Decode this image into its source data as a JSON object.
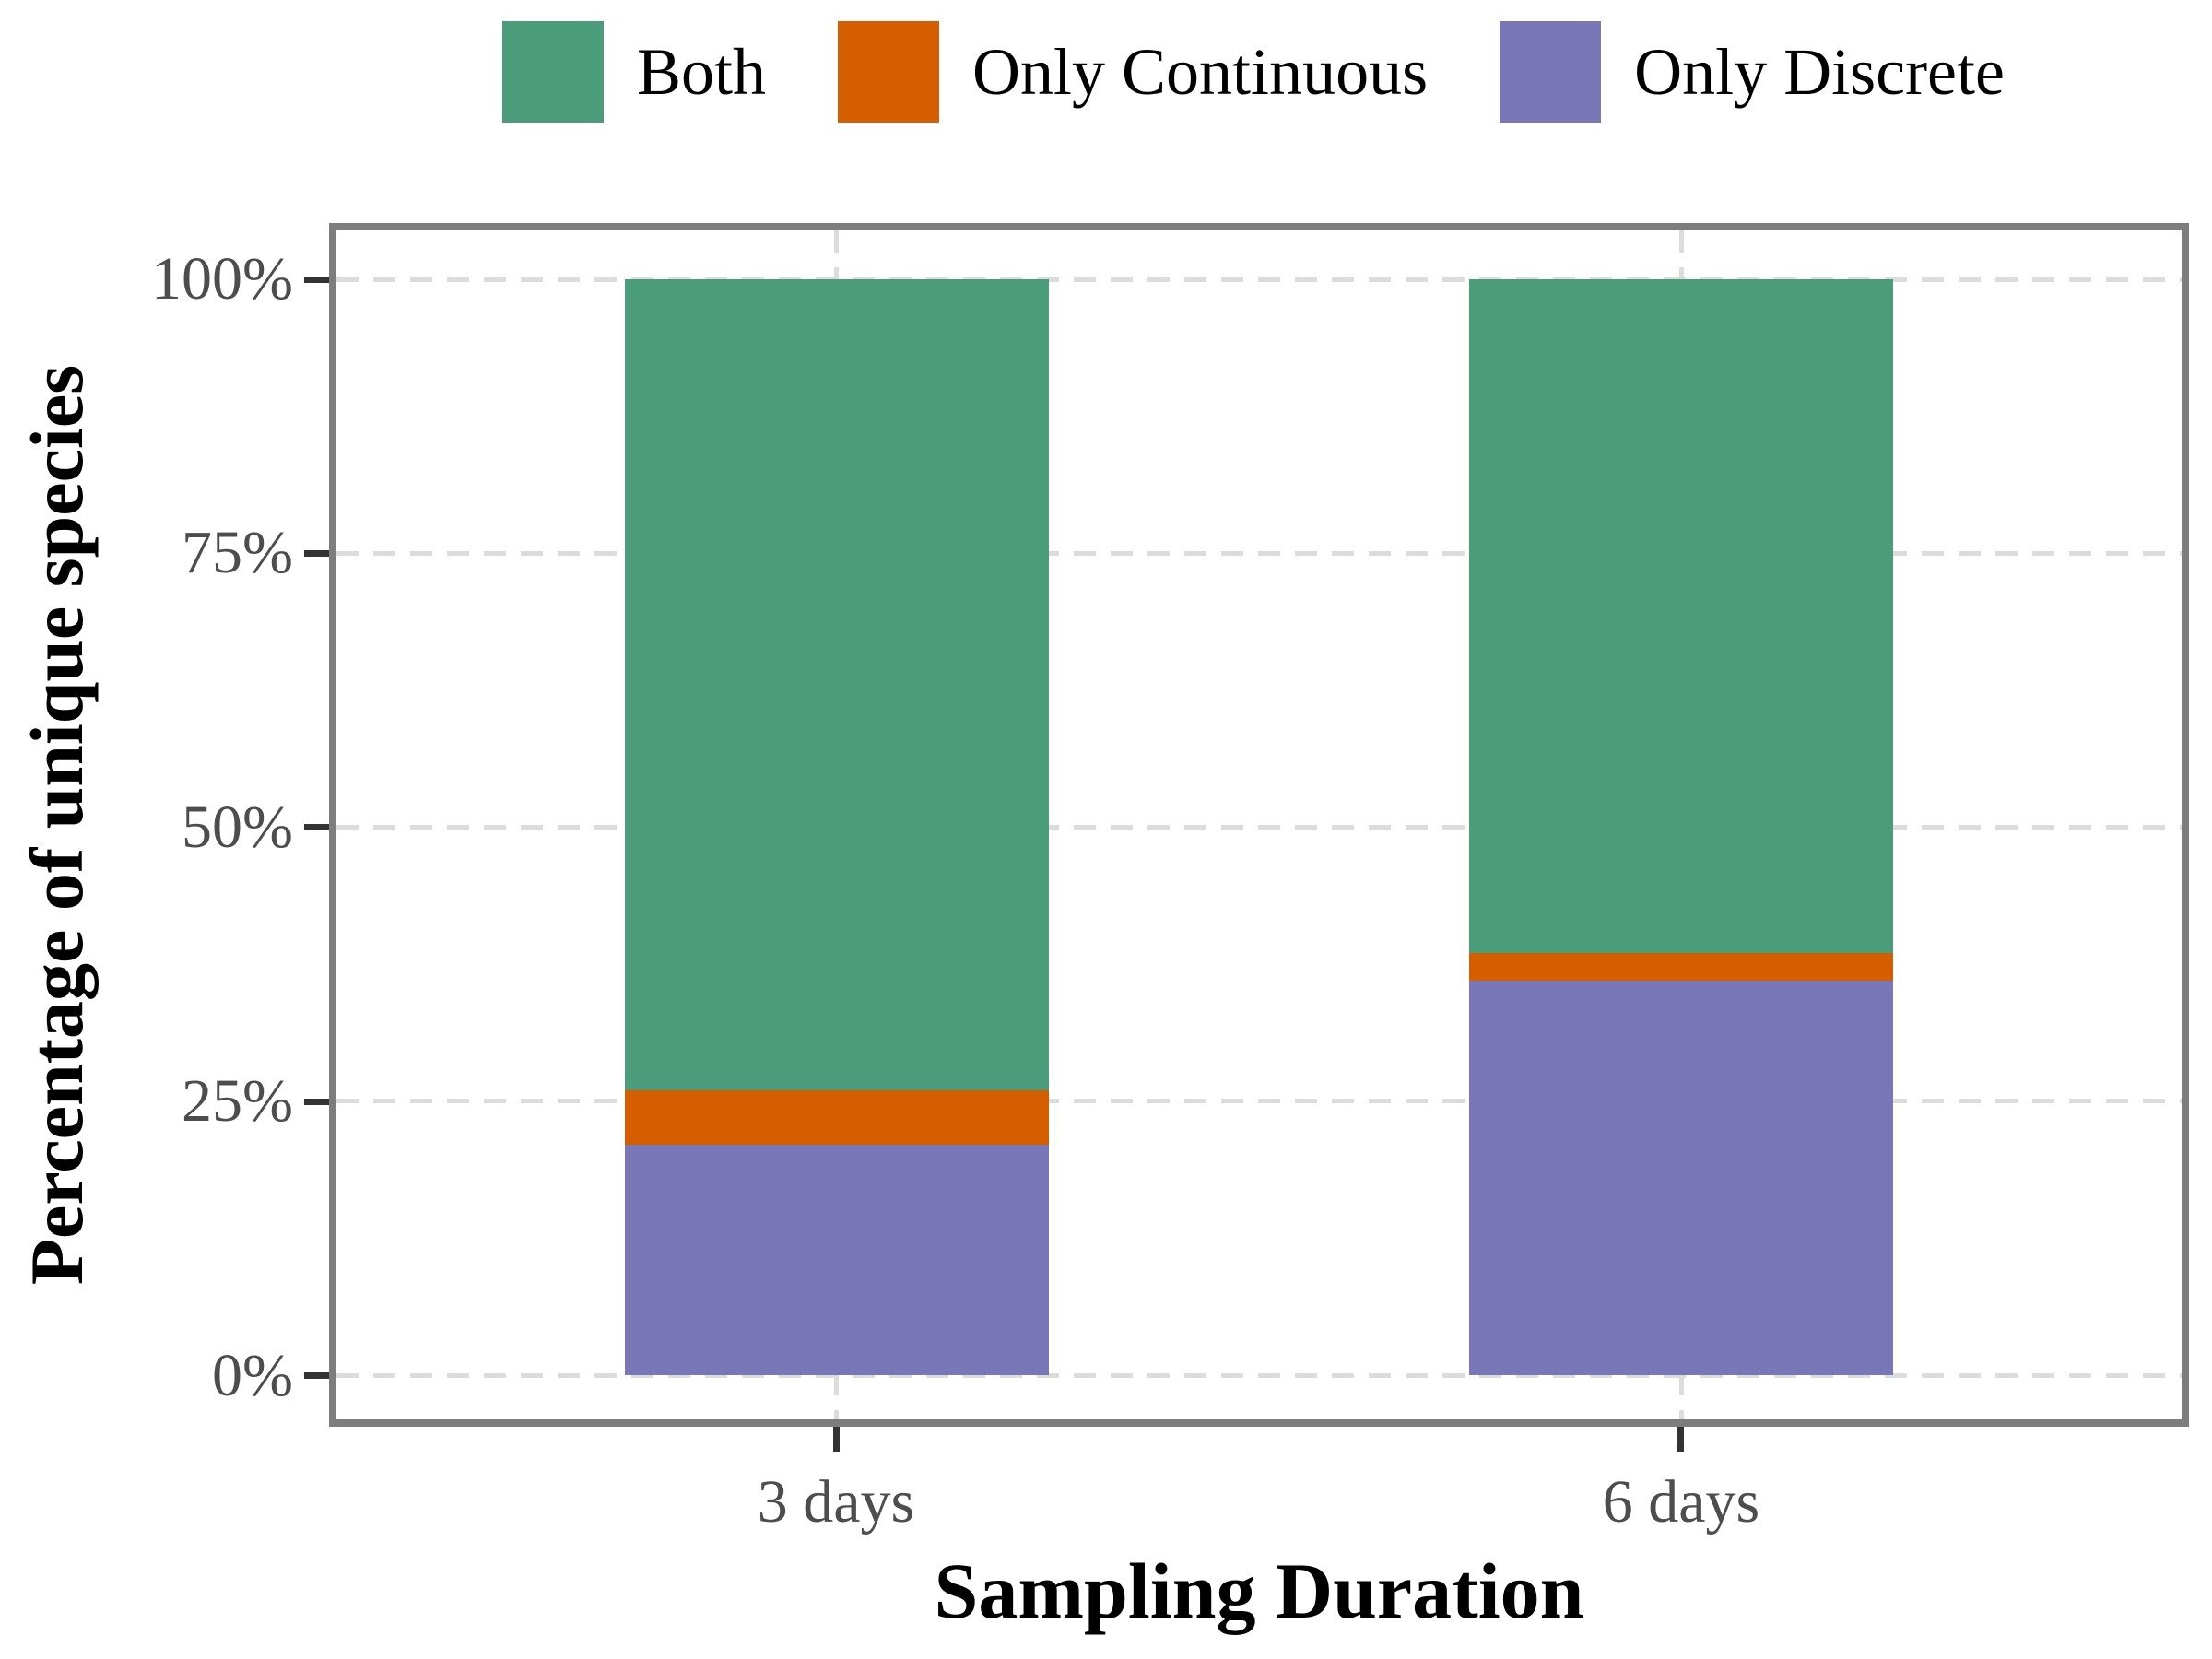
{
  "chart_data": {
    "type": "bar",
    "stacked": true,
    "orientation": "vertical",
    "title": "",
    "xlabel": "Sampling Duration",
    "ylabel": "Percentage of unique species",
    "categories": [
      "3 days",
      "6 days"
    ],
    "series": [
      {
        "name": "Both",
        "color": "#4A9C7B",
        "values": [
          74.0,
          61.5
        ]
      },
      {
        "name": "Only Continuous",
        "color": "#D55F00",
        "values": [
          5.0,
          2.5
        ]
      },
      {
        "name": "Only Discrete",
        "color": "#7A77B8",
        "values": [
          21.0,
          36.0
        ]
      }
    ],
    "stack_order_bottom_to_top": [
      "Only Discrete",
      "Only Continuous",
      "Both"
    ],
    "y_ticks": [
      "0%",
      "25%",
      "50%",
      "75%",
      "100%"
    ],
    "y_tick_values": [
      0,
      25,
      50,
      75,
      100
    ],
    "ylim": [
      0,
      100
    ],
    "legend_position": "top",
    "grid": "dashed light-gray horizontal lines at ticks and vertical lines at category centers",
    "panel_border_color": "#7d7d7d",
    "gridline_color": "#dcdcdc",
    "tick_label_color": "#4d4d4d"
  }
}
